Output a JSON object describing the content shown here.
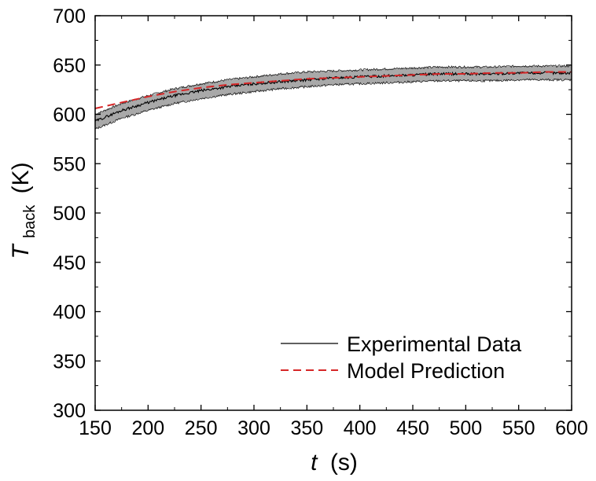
{
  "chart_data": {
    "type": "line",
    "xlabel": {
      "symbol": "t",
      "unit": "(s)"
    },
    "ylabel": {
      "symbol": "T",
      "subscript": "back",
      "unit": "(K)"
    },
    "xlim": [
      150,
      600
    ],
    "ylim": [
      300,
      700
    ],
    "xticks": [
      150,
      200,
      250,
      300,
      350,
      400,
      450,
      500,
      550,
      600
    ],
    "yticks": [
      300,
      350,
      400,
      450,
      500,
      550,
      600,
      650,
      700
    ],
    "grid": false,
    "legend_position": "bottom-right",
    "series": [
      {
        "name": "Experimental Data",
        "style": "solid",
        "color": "#000000",
        "band_color": "#a9a9a9",
        "x": [
          150,
          175,
          200,
          225,
          250,
          275,
          300,
          325,
          350,
          375,
          400,
          425,
          450,
          475,
          500,
          525,
          550,
          575,
          600
        ],
        "y": [
          593,
          604,
          612,
          619,
          624,
          628,
          631,
          633,
          635,
          637,
          638,
          639,
          640,
          641,
          641,
          641,
          642,
          642,
          642
        ],
        "lower": [
          585,
          596,
          604,
          611,
          616,
          620,
          623,
          626,
          628,
          630,
          631,
          632,
          633,
          634,
          634,
          634,
          635,
          635,
          635
        ],
        "upper": [
          600,
          611,
          619,
          626,
          631,
          635,
          638,
          641,
          643,
          644,
          645,
          646,
          647,
          648,
          648,
          648,
          649,
          649,
          649
        ]
      },
      {
        "name": "Model Prediction",
        "style": "dashed",
        "color": "#d62728",
        "x": [
          150,
          175,
          200,
          225,
          250,
          275,
          300,
          325,
          350,
          375,
          400,
          425,
          450,
          475,
          500,
          525,
          550,
          575,
          600
        ],
        "y": [
          606,
          612,
          618,
          623,
          627,
          630,
          632,
          634,
          636,
          637,
          638,
          639,
          640,
          641,
          641,
          642,
          642,
          643,
          643
        ]
      }
    ]
  }
}
